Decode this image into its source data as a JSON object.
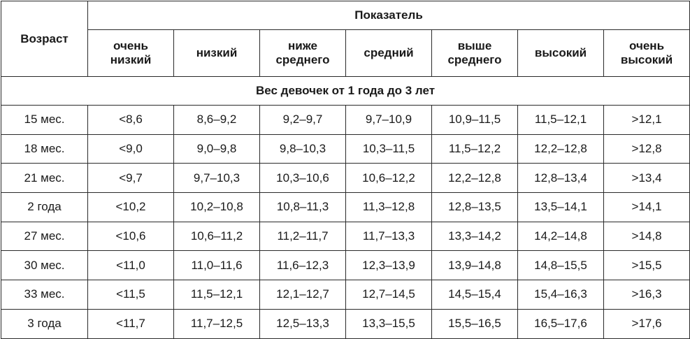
{
  "table": {
    "age_header": "Возраст",
    "indicator_header": "Показатель",
    "columns": [
      [
        "очень",
        "низкий"
      ],
      [
        "низкий"
      ],
      [
        "ниже",
        "среднего"
      ],
      [
        "средний"
      ],
      [
        "выше",
        "среднего"
      ],
      [
        "высокий"
      ],
      [
        "очень",
        "высокий"
      ]
    ],
    "section_title": "Вес девочек от 1 года до 3 лет",
    "rows": [
      {
        "age": "15 мес.",
        "values": [
          "<8,6",
          "8,6–9,2",
          "9,2–9,7",
          "9,7–10,9",
          "10,9–11,5",
          "11,5–12,1",
          ">12,1"
        ]
      },
      {
        "age": "18 мес.",
        "values": [
          "<9,0",
          "9,0–9,8",
          "9,8–10,3",
          "10,3–11,5",
          "11,5–12,2",
          "12,2–12,8",
          ">12,8"
        ]
      },
      {
        "age": "21 мес.",
        "values": [
          "<9,7",
          "9,7–10,3",
          "10,3–10,6",
          "10,6–12,2",
          "12,2–12,8",
          "12,8–13,4",
          ">13,4"
        ]
      },
      {
        "age": "2 года",
        "values": [
          "<10,2",
          "10,2–10,8",
          "10,8–11,3",
          "11,3–12,8",
          "12,8–13,5",
          "13,5–14,1",
          ">14,1"
        ]
      },
      {
        "age": "27 мес.",
        "values": [
          "<10,6",
          "10,6–11,2",
          "11,2–11,7",
          "11,7–13,3",
          "13,3–14,2",
          "14,2–14,8",
          ">14,8"
        ]
      },
      {
        "age": "30 мес.",
        "values": [
          "<11,0",
          "11,0–11,6",
          "11,6–12,3",
          "12,3–13,9",
          "13,9–14,8",
          "14,8–15,5",
          ">15,5"
        ]
      },
      {
        "age": "33 мес.",
        "values": [
          "<11,5",
          "11,5–12,1",
          "12,1–12,7",
          "12,7–14,5",
          "14,5–15,4",
          "15,4–16,3",
          ">16,3"
        ]
      },
      {
        "age": "3 года",
        "values": [
          "<11,7",
          "11,7–12,5",
          "12,5–13,3",
          "13,3–15,5",
          "15,5–16,5",
          "16,5–17,6",
          ">17,6"
        ]
      }
    ]
  }
}
